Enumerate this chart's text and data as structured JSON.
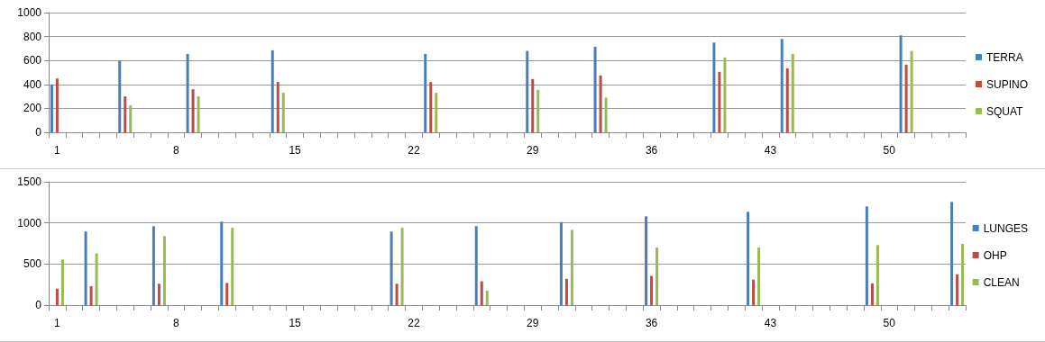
{
  "chart_data": [
    {
      "type": "bar",
      "categories": [
        "1",
        null,
        null,
        null,
        null,
        null,
        null,
        "8",
        null,
        null,
        null,
        null,
        null,
        null,
        "15",
        null,
        null,
        null,
        null,
        null,
        null,
        "22",
        null,
        null,
        null,
        null,
        null,
        null,
        "29",
        null,
        null,
        null,
        null,
        null,
        null,
        "36",
        null,
        null,
        null,
        null,
        null,
        null,
        "43",
        null,
        null,
        null,
        null,
        null,
        null,
        "50",
        null,
        null,
        null,
        null
      ],
      "series": [
        {
          "name": "TERRA",
          "color": "#4a7ebb",
          "values": [
            400,
            null,
            null,
            null,
            600,
            null,
            null,
            null,
            655,
            null,
            null,
            null,
            null,
            685,
            null,
            null,
            null,
            null,
            null,
            null,
            null,
            null,
            655,
            null,
            null,
            null,
            null,
            null,
            680,
            null,
            null,
            null,
            715,
            null,
            null,
            null,
            null,
            null,
            null,
            750,
            null,
            null,
            null,
            780,
            null,
            null,
            null,
            null,
            null,
            null,
            810,
            null,
            null,
            null
          ]
        },
        {
          "name": "SUPINO",
          "color": "#be4b48",
          "values": [
            450,
            null,
            null,
            null,
            300,
            null,
            null,
            null,
            360,
            null,
            null,
            null,
            null,
            420,
            null,
            null,
            null,
            null,
            null,
            null,
            null,
            null,
            420,
            null,
            null,
            null,
            null,
            null,
            445,
            null,
            null,
            null,
            475,
            null,
            null,
            null,
            null,
            null,
            null,
            505,
            null,
            null,
            null,
            535,
            null,
            null,
            null,
            null,
            null,
            null,
            565,
            null,
            null,
            null
          ]
        },
        {
          "name": "SQUAT",
          "color": "#98b954",
          "values": [
            null,
            null,
            null,
            null,
            225,
            null,
            null,
            null,
            300,
            null,
            null,
            null,
            null,
            330,
            null,
            null,
            null,
            null,
            null,
            null,
            null,
            null,
            330,
            null,
            null,
            null,
            null,
            null,
            355,
            null,
            null,
            null,
            290,
            null,
            null,
            null,
            null,
            null,
            null,
            625,
            null,
            null,
            null,
            655,
            null,
            null,
            null,
            null,
            null,
            null,
            680,
            null,
            null,
            null
          ]
        }
      ],
      "ylim": [
        0,
        1000
      ],
      "yticks": [
        0,
        200,
        400,
        600,
        800,
        1000
      ],
      "grid": "y",
      "legend": "right"
    },
    {
      "type": "bar",
      "categories": [
        "1",
        null,
        null,
        null,
        null,
        null,
        null,
        "8",
        null,
        null,
        null,
        null,
        null,
        null,
        "15",
        null,
        null,
        null,
        null,
        null,
        null,
        "22",
        null,
        null,
        null,
        null,
        null,
        null,
        "29",
        null,
        null,
        null,
        null,
        null,
        null,
        "36",
        null,
        null,
        null,
        null,
        null,
        null,
        "43",
        null,
        null,
        null,
        null,
        null,
        null,
        "50",
        null,
        null,
        null,
        null
      ],
      "series": [
        {
          "name": "LUNGES",
          "color": "#4a7ebb",
          "values": [
            null,
            null,
            895,
            null,
            null,
            null,
            960,
            null,
            null,
            null,
            1015,
            null,
            null,
            null,
            null,
            null,
            null,
            null,
            null,
            null,
            895,
            null,
            null,
            null,
            null,
            960,
            null,
            null,
            null,
            null,
            1010,
            null,
            null,
            null,
            null,
            1080,
            null,
            null,
            null,
            null,
            null,
            1135,
            null,
            null,
            null,
            null,
            null,
            null,
            1200,
            null,
            null,
            null,
            null,
            1255
          ]
        },
        {
          "name": "OHP",
          "color": "#be4b48",
          "values": [
            200,
            null,
            230,
            null,
            null,
            null,
            260,
            null,
            null,
            null,
            270,
            null,
            null,
            null,
            null,
            null,
            null,
            null,
            null,
            null,
            260,
            null,
            null,
            null,
            null,
            290,
            null,
            null,
            null,
            null,
            320,
            null,
            null,
            null,
            null,
            355,
            null,
            null,
            null,
            null,
            null,
            310,
            null,
            null,
            null,
            null,
            null,
            null,
            265,
            null,
            null,
            null,
            null,
            375
          ]
        },
        {
          "name": "CLEAN",
          "color": "#98b954",
          "values": [
            555,
            null,
            630,
            null,
            null,
            null,
            840,
            null,
            null,
            null,
            940,
            null,
            null,
            null,
            null,
            null,
            null,
            null,
            null,
            null,
            940,
            null,
            null,
            null,
            null,
            175,
            null,
            null,
            null,
            null,
            915,
            null,
            null,
            null,
            null,
            700,
            null,
            null,
            null,
            null,
            null,
            700,
            null,
            null,
            null,
            null,
            null,
            null,
            730,
            null,
            null,
            null,
            null,
            745
          ]
        }
      ],
      "ylim": [
        0,
        1500
      ],
      "yticks": [
        0,
        500,
        1000,
        1500
      ],
      "grid": "y",
      "legend": "right"
    }
  ]
}
